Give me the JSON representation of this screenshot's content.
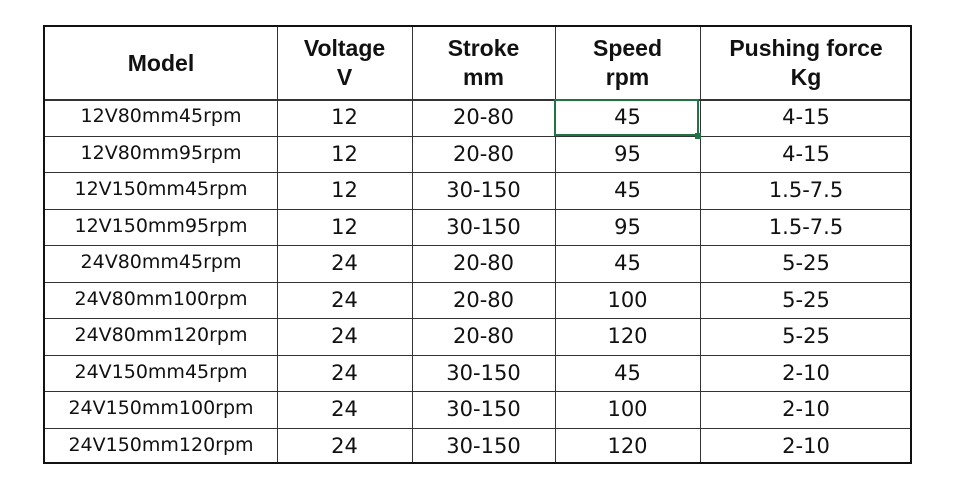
{
  "table": {
    "header": [
      [
        "Model"
      ],
      [
        "Voltage",
        "V"
      ],
      [
        "Stroke",
        "mm"
      ],
      [
        "Speed",
        "rpm"
      ],
      [
        "Pushing force",
        "Kg"
      ]
    ],
    "rows": [
      [
        "12V80mm45rpm",
        "12",
        "20-80",
        "45",
        "4-15"
      ],
      [
        "12V80mm95rpm",
        "12",
        "20-80",
        "95",
        "4-15"
      ],
      [
        "12V150mm45rpm",
        "12",
        "30-150",
        "45",
        "1.5-7.5"
      ],
      [
        "12V150mm95rpm",
        "12",
        "30-150",
        "95",
        "1.5-7.5"
      ],
      [
        "24V80mm45rpm",
        "24",
        "20-80",
        "45",
        "5-25"
      ],
      [
        "24V80mm100rpm",
        "24",
        "20-80",
        "100",
        "5-25"
      ],
      [
        "24V80mm120rpm",
        "24",
        "20-80",
        "120",
        "5-25"
      ],
      [
        "24V150mm45rpm",
        "24",
        "30-150",
        "45",
        "2-10"
      ],
      [
        "24V150mm100rpm",
        "24",
        "30-150",
        "100",
        "2-10"
      ],
      [
        "24V150mm120rpm",
        "24",
        "30-150",
        "120",
        "2-10"
      ]
    ]
  }
}
